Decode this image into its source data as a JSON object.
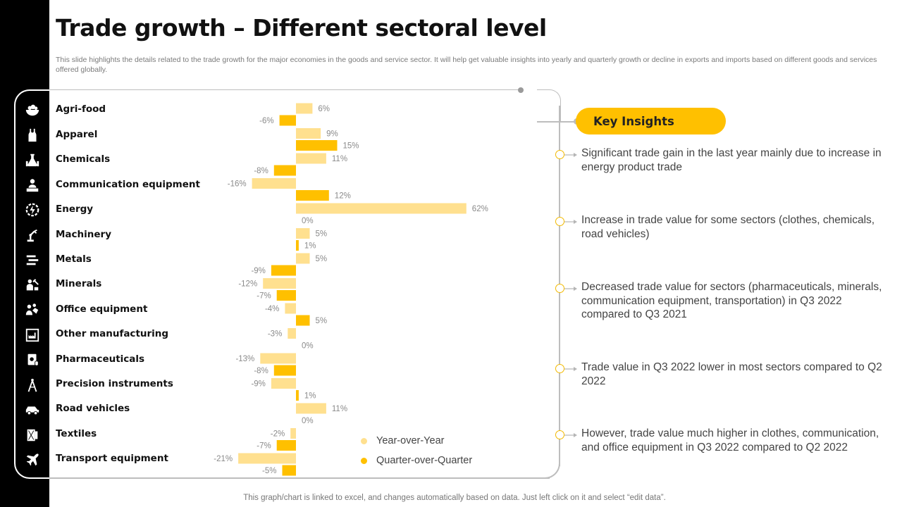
{
  "title": "Trade growth – Different sectoral level",
  "subtitle": "This slide highlights the details related to the trade growth for the major economies in the goods and service sector. It will help get valuable insights into yearly and quarterly growth or decline in exports and imports based on different goods and services offered globally.",
  "icons": [
    "salad-bowl-icon",
    "tank-top-icon",
    "chemical-flasks-icon",
    "video-conference-icon",
    "energy-gear-icon",
    "robotic-arm-icon",
    "metal-beams-icon",
    "miner-icon",
    "office-team-icon",
    "factory-monitor-icon",
    "pill-box-icon",
    "compass-icon",
    "car-icon",
    "fabric-roll-icon",
    "airplane-icon"
  ],
  "chart_data": {
    "type": "bar",
    "orientation": "horizontal",
    "title": "",
    "categories": [
      "Agri-food",
      "Apparel",
      "Chemicals",
      "Communication equipment",
      "Energy",
      "Machinery",
      "Metals",
      "Minerals",
      "Office equipment",
      "Other manufacturing",
      "Pharmaceuticals",
      "Precision instruments",
      "Road vehicles",
      "Textiles",
      "Transport equipment"
    ],
    "series": [
      {
        "name": "Year-over-Year",
        "color": "#ffe08f",
        "values": [
          6,
          9,
          11,
          -16,
          62,
          5,
          5,
          -12,
          -4,
          -3,
          -13,
          -9,
          11,
          -2,
          -21
        ]
      },
      {
        "name": "Quarter-over-Quarter",
        "color": "#ffc000",
        "values": [
          -6,
          15,
          -8,
          12,
          0,
          1,
          -9,
          -7,
          5,
          0,
          -8,
          1,
          0,
          -7,
          -5
        ]
      }
    ],
    "value_suffix": "%",
    "xlabel": "",
    "ylabel": "",
    "legend_position": "bottom-right"
  },
  "key_insights": {
    "title": "Key Insights",
    "items": [
      "Significant trade gain in the last year mainly due to increase in energy product trade",
      "Increase in trade value for some sectors (clothes, chemicals, road vehicles)",
      "Decreased trade value for sectors (pharmaceuticals, minerals, communication equipment, transportation) in Q3 2022 compared to Q3 2021",
      "Trade value in Q3 2022 lower in most sectors compared to Q2 2022",
      "However, trade value much higher in clothes, communication, and office equipment in Q3 2022 compared to Q2 2022"
    ]
  },
  "footnote": "This graph/chart is linked to excel, and changes automatically based on data. Just left click on it and select “edit data”."
}
